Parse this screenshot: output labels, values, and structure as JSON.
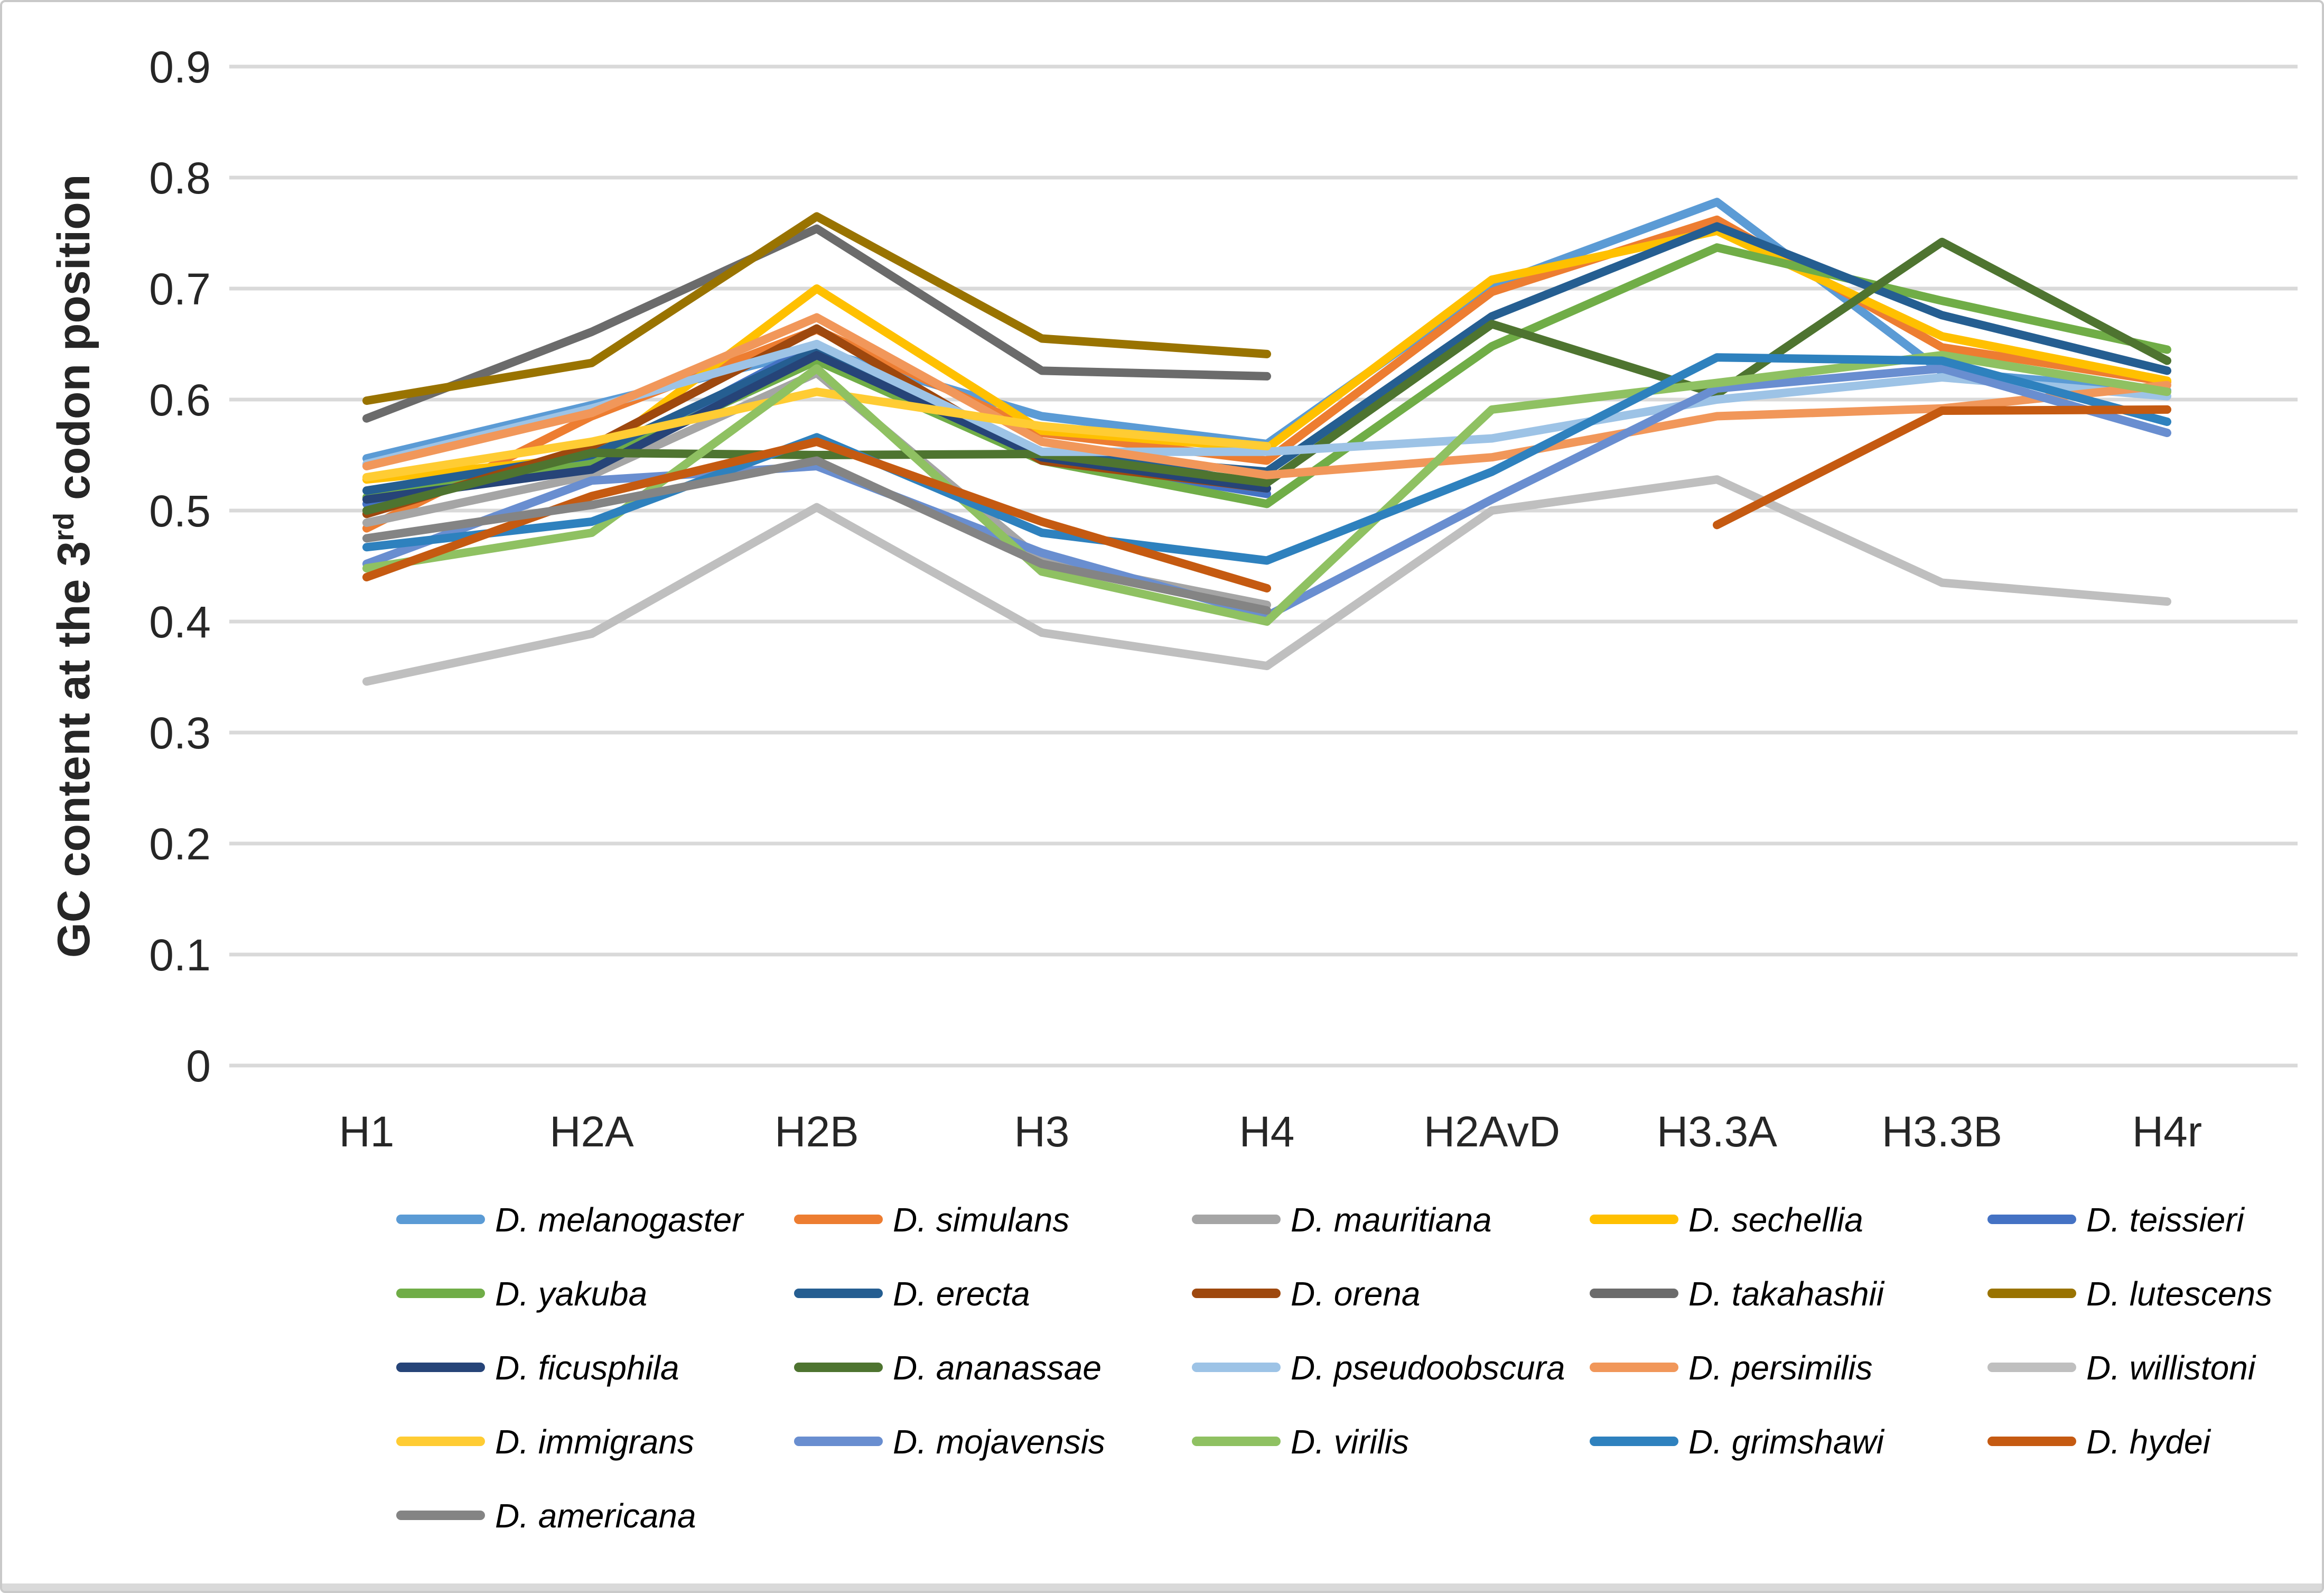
{
  "figure": {
    "background": "#FFFFFF",
    "border_color": "#C9C9C9",
    "bottom_edge_color": "#D9D9D9"
  },
  "chart_data": {
    "type": "line",
    "title": "",
    "xlabel": "",
    "ylabel_prefix": "GC content at the 3",
    "ylabel_sup": "rd",
    "ylabel_suffix": " codon position",
    "ylim": [
      0,
      0.9
    ],
    "grid": true,
    "grid_color": "#D9D9D9",
    "axis_text_color": "#262626",
    "legend_position": "bottom",
    "legend_text_color": "#000000",
    "yticks": [
      {
        "label": "0",
        "value": 0.0
      },
      {
        "label": "0.1",
        "value": 0.1
      },
      {
        "label": "0.2",
        "value": 0.2
      },
      {
        "label": "0.3",
        "value": 0.3
      },
      {
        "label": "0.4",
        "value": 0.4
      },
      {
        "label": "0.5",
        "value": 0.5
      },
      {
        "label": "0.6",
        "value": 0.6
      },
      {
        "label": "0.7",
        "value": 0.7
      },
      {
        "label": "0.8",
        "value": 0.8
      },
      {
        "label": "0.9",
        "value": 0.9
      }
    ],
    "categories": [
      "H1",
      "H2A",
      "H2B",
      "H3",
      "H4",
      "H2AvD",
      "H3.3A",
      "H3.3B",
      "H4r"
    ],
    "series": [
      {
        "name": "D. melanogaster",
        "color": "#5B9BD5",
        "values": [
          0.547,
          0.595,
          0.645,
          0.585,
          0.56,
          0.703,
          0.778,
          0.625,
          0.608
        ]
      },
      {
        "name": "D. simulans",
        "color": "#ED7D31",
        "values": [
          0.484,
          0.585,
          0.663,
          0.57,
          0.545,
          0.697,
          0.762,
          0.647,
          0.616
        ]
      },
      {
        "name": "D. mauritiana",
        "color": "#A5A5A5",
        "values": [
          0.489,
          0.532,
          0.624,
          0.455,
          0.415,
          null,
          null,
          null,
          null
        ]
      },
      {
        "name": "D. sechellia",
        "color": "#FFC000",
        "values": [
          0.528,
          0.548,
          0.7,
          0.572,
          0.556,
          0.708,
          0.752,
          0.657,
          0.617
        ]
      },
      {
        "name": "D. teissieri",
        "color": "#4472C4",
        "values": [
          0.506,
          0.543,
          0.65,
          0.548,
          0.515,
          null,
          null,
          null,
          null
        ]
      },
      {
        "name": "D. yakuba",
        "color": "#70AD47",
        "values": [
          0.512,
          0.542,
          0.635,
          0.545,
          0.506,
          0.648,
          0.737,
          0.689,
          0.645
        ]
      },
      {
        "name": "D. erecta",
        "color": "#255E91",
        "values": [
          0.518,
          0.55,
          0.645,
          0.552,
          0.535,
          0.675,
          0.756,
          0.676,
          0.626
        ]
      },
      {
        "name": "D. orena",
        "color": "#9E480E",
        "values": [
          0.497,
          0.558,
          0.664,
          0.545,
          0.52,
          null,
          null,
          null,
          null
        ]
      },
      {
        "name": "D. takahashii",
        "color": "#6B6B6B",
        "values": [
          0.583,
          0.661,
          0.754,
          0.626,
          0.621,
          null,
          null,
          null,
          null
        ]
      },
      {
        "name": "D. lutescens",
        "color": "#997300",
        "values": [
          0.599,
          0.633,
          0.765,
          0.655,
          0.641,
          null,
          null,
          null,
          null
        ]
      },
      {
        "name": "D. ficusphila",
        "color": "#264478",
        "values": [
          0.51,
          0.537,
          0.64,
          0.548,
          0.52,
          null,
          null,
          null,
          null
        ]
      },
      {
        "name": "D. ananassae",
        "color": "#4E7430",
        "values": [
          0.5,
          0.552,
          0.55,
          0.551,
          0.525,
          0.668,
          0.605,
          0.742,
          0.635
        ]
      },
      {
        "name": "D. pseudoobscura",
        "color": "#9DC3E6",
        "values": [
          0.542,
          0.592,
          0.65,
          0.553,
          0.553,
          0.565,
          0.6,
          0.62,
          0.603
        ]
      },
      {
        "name": "D. persimilis",
        "color": "#F1975A",
        "values": [
          0.54,
          0.588,
          0.674,
          0.562,
          0.532,
          0.548,
          0.585,
          0.592,
          0.613
        ]
      },
      {
        "name": "D. willistoni",
        "color": "#BFBFBF",
        "values": [
          0.346,
          0.389,
          0.503,
          0.39,
          0.36,
          0.5,
          0.528,
          0.435,
          0.418
        ]
      },
      {
        "name": "D. immigrans",
        "color": "#FFCC33",
        "values": [
          0.53,
          0.562,
          0.607,
          0.576,
          0.558,
          null,
          null,
          null,
          null
        ]
      },
      {
        "name": "D. mojavensis",
        "color": "#698ED0",
        "values": [
          0.452,
          0.527,
          0.54,
          0.462,
          0.405,
          0.51,
          0.61,
          0.628,
          0.57
        ]
      },
      {
        "name": "D. virilis",
        "color": "#8FC162",
        "values": [
          0.448,
          0.48,
          0.628,
          0.445,
          0.4,
          0.591,
          0.615,
          0.64,
          0.607
        ]
      },
      {
        "name": "D. grimshawi",
        "color": "#2E81BE",
        "values": [
          0.467,
          0.49,
          0.566,
          0.48,
          0.455,
          0.535,
          0.638,
          0.635,
          0.58
        ]
      },
      {
        "name": "D. hydei",
        "color": "#C55A11",
        "values": [
          0.44,
          0.513,
          0.562,
          0.49,
          0.43,
          null,
          0.487,
          0.59,
          0.591
        ]
      },
      {
        "name": "D. americana",
        "color": "#848484",
        "values": [
          0.475,
          0.505,
          0.545,
          0.452,
          0.41,
          null,
          null,
          null,
          null
        ]
      }
    ]
  }
}
